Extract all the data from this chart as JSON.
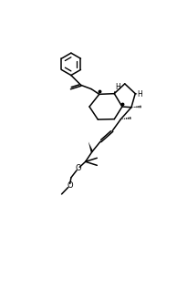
{
  "bg": "#ffffff",
  "lc": "#000000",
  "lw": 1.1,
  "figsize": [
    1.94,
    3.17
  ],
  "dpi": 100,
  "xlim": [
    -1,
    9
  ],
  "ylim": [
    0,
    17
  ]
}
